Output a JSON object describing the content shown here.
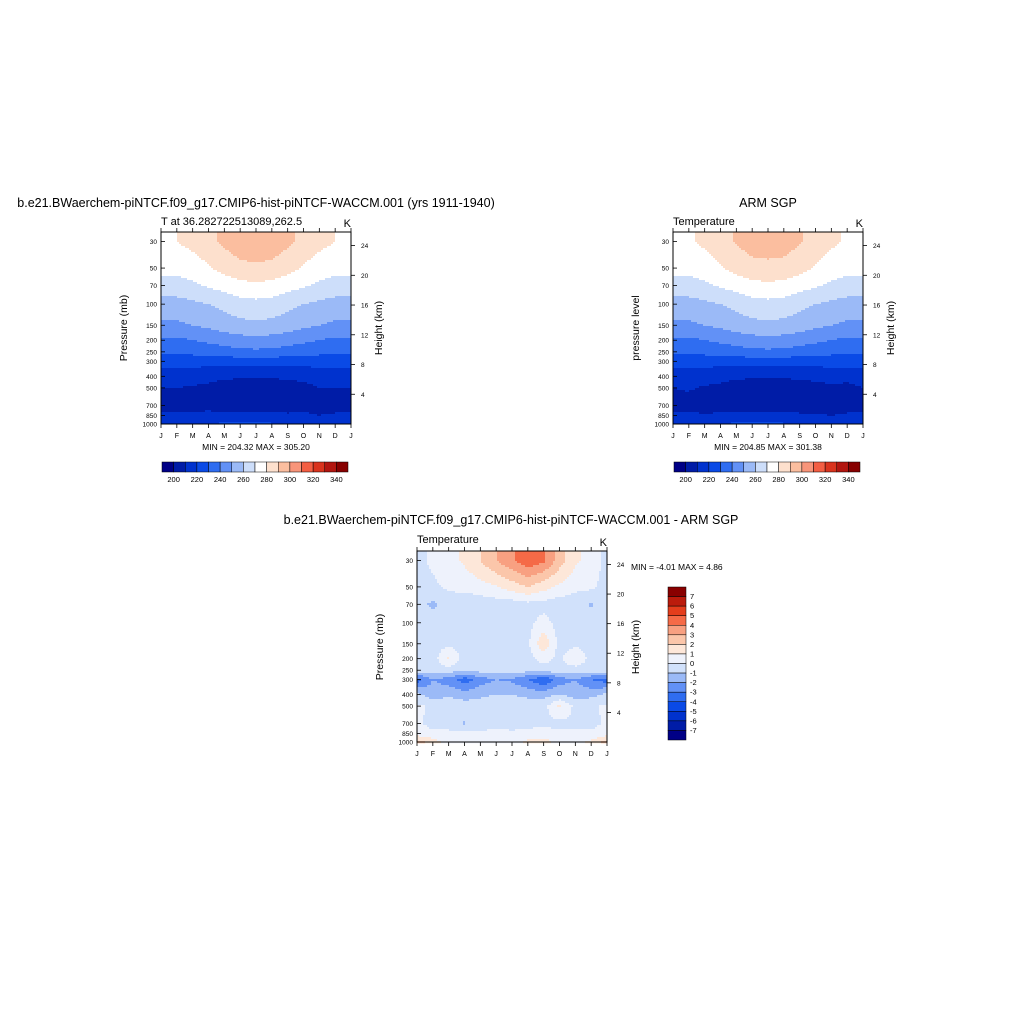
{
  "chart_data": [
    {
      "type": "heatmap",
      "title": "b.e21.BWaerchem-piNTCF.f09_g17.CMIP6-hist-piNTCF-WACCM.001 (yrs 1911-1940)",
      "left_label": "T at 36.282722513089,262.5",
      "right_label": "K",
      "ylabel": "Pressure (mb)",
      "ylabel_right": "Height (km)",
      "stats": "MIN = 204.32 MAX = 305.20",
      "x_ticks": [
        "J",
        "F",
        "M",
        "A",
        "M",
        "J",
        "J",
        "A",
        "S",
        "O",
        "N",
        "D",
        "J"
      ],
      "pressure_ticks": [
        30,
        50,
        70,
        100,
        150,
        200,
        250,
        300,
        400,
        500,
        700,
        850,
        1000
      ],
      "height_ticks": [
        4,
        8,
        12,
        16,
        20,
        24
      ],
      "colorbar_labels": [
        200,
        220,
        240,
        260,
        280,
        300,
        320,
        340
      ],
      "colorbar_range": [
        190,
        350
      ],
      "colorbar_step": 10,
      "values_K": [
        [
          214,
          215,
          217,
          220,
          222,
          222,
          222,
          221,
          220,
          218,
          216,
          215,
          214
        ],
        [
          212,
          212,
          211,
          211,
          211,
          212,
          212,
          212,
          211,
          211,
          210,
          211,
          212
        ],
        [
          205,
          206,
          208,
          209,
          207,
          206,
          206,
          206,
          207,
          208,
          208,
          207,
          205
        ],
        [
          210,
          210,
          209,
          208,
          205,
          205,
          205,
          205,
          205,
          207,
          210,
          210,
          210
        ],
        [
          216,
          215,
          214,
          213,
          212,
          211,
          211,
          211,
          212,
          213,
          214,
          215,
          216
        ],
        [
          224,
          224,
          224,
          224,
          224,
          225,
          225,
          225,
          224,
          224,
          224,
          224,
          224
        ],
        [
          232,
          232,
          233,
          234,
          236,
          237,
          238,
          237,
          236,
          234,
          233,
          232,
          232
        ],
        [
          238,
          238,
          240,
          242,
          244,
          246,
          247,
          246,
          244,
          242,
          240,
          238,
          238
        ],
        [
          248,
          248,
          250,
          252,
          255,
          257,
          258,
          257,
          255,
          252,
          250,
          248,
          248
        ],
        [
          256,
          256,
          258,
          260,
          263,
          266,
          267,
          266,
          263,
          260,
          258,
          256,
          256
        ],
        [
          266,
          266,
          268,
          271,
          274,
          277,
          278,
          277,
          274,
          271,
          268,
          266,
          266
        ],
        [
          273,
          273,
          275,
          279,
          284,
          287,
          288,
          287,
          284,
          279,
          275,
          273,
          273
        ],
        [
          279,
          280,
          283,
          287,
          292,
          296,
          298,
          296,
          292,
          287,
          283,
          280,
          279
        ]
      ]
    },
    {
      "type": "heatmap",
      "title": "ARM SGP",
      "left_label": "Temperature",
      "right_label": "K",
      "ylabel": "pressure level",
      "ylabel_right": "Height (km)",
      "stats": "MIN = 204.85 MAX = 301.38",
      "x_ticks": [
        "J",
        "F",
        "M",
        "A",
        "M",
        "J",
        "J",
        "A",
        "S",
        "O",
        "N",
        "D",
        "J"
      ],
      "pressure_ticks": [
        30,
        50,
        70,
        100,
        150,
        200,
        250,
        300,
        400,
        500,
        700,
        850,
        1000
      ],
      "height_ticks": [
        4,
        8,
        12,
        16,
        20,
        24
      ],
      "colorbar_labels": [
        200,
        220,
        240,
        260,
        280,
        300,
        320,
        340
      ],
      "colorbar_range": [
        190,
        350
      ],
      "colorbar_step": 10,
      "values_K": [
        [
          214,
          215,
          217,
          220,
          222,
          222,
          222,
          221,
          220,
          218,
          216,
          215,
          214
        ],
        [
          212,
          212,
          211,
          211,
          211,
          212,
          212,
          212,
          211,
          211,
          210,
          211,
          212
        ],
        [
          207,
          206,
          206,
          208,
          208,
          207,
          207,
          207,
          207,
          207,
          206,
          207,
          207
        ],
        [
          210,
          211,
          209,
          208,
          205,
          205,
          205,
          205,
          206,
          206,
          208,
          206,
          210
        ],
        [
          216,
          215,
          214,
          213,
          212,
          211,
          211,
          211,
          212,
          213,
          214,
          215,
          216
        ],
        [
          224,
          224,
          224,
          224,
          224,
          225,
          225,
          225,
          224,
          224,
          224,
          224,
          224
        ],
        [
          232,
          232,
          233,
          234,
          236,
          237,
          238,
          237,
          236,
          234,
          233,
          232,
          232
        ],
        [
          238,
          238,
          240,
          242,
          244,
          246,
          247,
          246,
          244,
          242,
          240,
          238,
          238
        ],
        [
          248,
          248,
          250,
          252,
          255,
          257,
          258,
          257,
          255,
          252,
          250,
          248,
          248
        ],
        [
          256,
          256,
          258,
          260,
          263,
          266,
          267,
          266,
          263,
          260,
          258,
          256,
          256
        ],
        [
          266,
          266,
          268,
          271,
          274,
          277,
          278,
          277,
          274,
          271,
          268,
          266,
          266
        ],
        [
          273,
          273,
          275,
          279,
          284,
          287,
          287,
          287,
          284,
          279,
          275,
          273,
          273
        ],
        [
          278,
          279,
          282,
          286,
          291,
          294,
          296,
          294,
          291,
          286,
          282,
          279,
          278
        ]
      ]
    },
    {
      "type": "heatmap",
      "title": "b.e21.BWaerchem-piNTCF.f09_g17.CMIP6-hist-piNTCF-WACCM.001 - ARM SGP",
      "left_label": "Temperature",
      "right_label": "K",
      "ylabel": "Pressure (mb)",
      "ylabel_right": "Height (km)",
      "stats": "MIN =  -4.01 MAX =   4.86",
      "x_ticks": [
        "J",
        "F",
        "M",
        "A",
        "M",
        "J",
        "J",
        "A",
        "S",
        "O",
        "N",
        "D",
        "J"
      ],
      "pressure_ticks": [
        30,
        50,
        70,
        100,
        150,
        200,
        250,
        300,
        400,
        500,
        700,
        850,
        1000
      ],
      "height_ticks": [
        4,
        8,
        12,
        16,
        20,
        24
      ],
      "colorbar_labels": [
        7,
        6,
        5,
        4,
        3,
        2,
        1,
        0,
        -1,
        -2,
        -3,
        -4,
        -5,
        -6,
        -7
      ],
      "colorbar_range": [
        -8,
        8
      ],
      "colorbar_step": 1,
      "values_K": [
        [
          2.5,
          1.5,
          0.5,
          0.2,
          0.3,
          0.5,
          0.4,
          1.3,
          1.5,
          0.5,
          0.6,
          1.2,
          2.5
        ],
        [
          0.5,
          0.2,
          0.3,
          0.2,
          0.2,
          0.3,
          0.2,
          0.3,
          0.4,
          0.2,
          0.2,
          0.2,
          0.5
        ],
        [
          0.2,
          -0.3,
          -0.5,
          -1.1,
          -0.5,
          -0.3,
          -0.4,
          -0.3,
          -0.2,
          -0.3,
          -0.2,
          -0.3,
          0.2
        ],
        [
          0.2,
          -0.2,
          -0.3,
          -0.5,
          -0.6,
          -0.3,
          -0.4,
          -0.3,
          -0.4,
          1.2,
          -0.3,
          -0.2,
          0.2
        ],
        [
          -0.8,
          -1.5,
          -1.2,
          -1.5,
          -1.2,
          -1.0,
          -1.0,
          -1.3,
          -1.4,
          -1.0,
          -1.5,
          -1.3,
          -0.8
        ],
        [
          -3.5,
          -2.0,
          -2.5,
          -3.6,
          -2.5,
          -2.0,
          -2.2,
          -3.0,
          -4.0,
          -2.5,
          -2.0,
          -3.0,
          -3.5
        ],
        [
          -0.4,
          -0.6,
          -0.5,
          -0.7,
          -0.6,
          -0.5,
          -0.5,
          -0.6,
          -0.5,
          -0.4,
          -0.6,
          -0.4,
          -0.4
        ],
        [
          -0.3,
          -0.5,
          1.2,
          -0.5,
          -0.6,
          -0.5,
          -0.6,
          -0.4,
          0.4,
          -0.3,
          1.1,
          -0.5,
          -0.3
        ],
        [
          -0.4,
          -0.4,
          -0.3,
          -0.4,
          -0.5,
          -0.4,
          -0.4,
          -0.2,
          1.8,
          -0.4,
          -0.3,
          -0.4,
          -0.4
        ],
        [
          -0.5,
          -0.6,
          -0.5,
          -0.5,
          -0.6,
          -0.5,
          -0.4,
          -0.3,
          0.4,
          -0.4,
          -0.5,
          -0.5,
          -0.5
        ],
        [
          -0.6,
          -1.2,
          -0.5,
          -0.7,
          -0.6,
          -0.5,
          -0.5,
          -0.3,
          -0.4,
          -0.6,
          -0.6,
          -1.1,
          -0.6
        ],
        [
          -0.4,
          -0.2,
          0.2,
          0.3,
          0.6,
          0.9,
          1.5,
          2.0,
          1.4,
          0.8,
          0.3,
          0.2,
          -0.4
        ],
        [
          -0.3,
          0.2,
          0.6,
          1.2,
          2.0,
          3.0,
          3.8,
          4.8,
          4.2,
          2.5,
          1.2,
          0.6,
          -0.3
        ]
      ]
    }
  ],
  "colors": {
    "temp_palette": [
      "#000086",
      "#001ca7",
      "#0032ce",
      "#0a4ae6",
      "#2f6df1",
      "#6291f6",
      "#9bbaf7",
      "#cddefa",
      "#ffffff",
      "#fde0cd",
      "#fbbe9f",
      "#f8957a",
      "#f35e43",
      "#d9331d",
      "#b2150f",
      "#870000"
    ],
    "diff_palette": [
      "#000086",
      "#001ca7",
      "#0032ce",
      "#0a4ae6",
      "#2f6df1",
      "#6291f6",
      "#9bbaf7",
      "#d1e1fb",
      "#eef2fc",
      "#fde7d9",
      "#fbc6aa",
      "#f8a081",
      "#f56a47",
      "#e43d1c",
      "#bb1b0c",
      "#890000"
    ]
  }
}
